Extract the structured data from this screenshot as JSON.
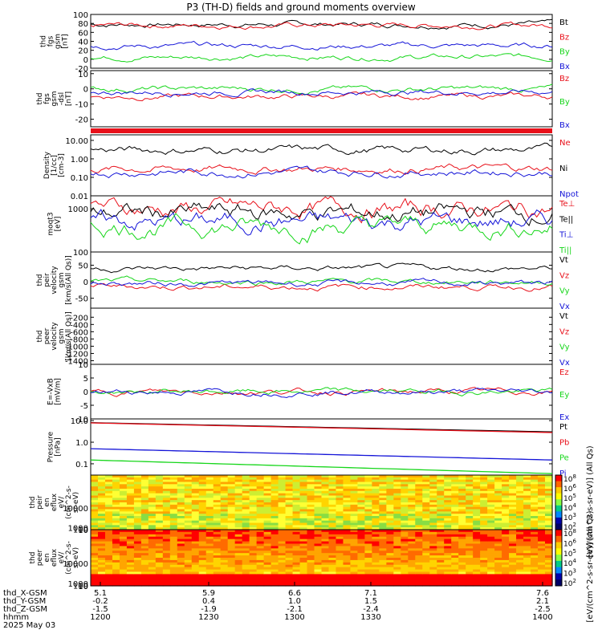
{
  "title": "P3 (TH-D) fields and ground moments overview",
  "colors": {
    "black": "#000000",
    "red": "#e8101a",
    "green": "#16d61a",
    "blue": "#1414d8"
  },
  "chart_data": [
    {
      "type": "line",
      "panel": "fgs-gsm",
      "ylabel": [
        "thd",
        "fgs",
        "gsm",
        "[nT]"
      ],
      "ylim": [
        -20,
        100
      ],
      "yticks": [
        100,
        80,
        60,
        40,
        20,
        0,
        -20
      ],
      "series": [
        {
          "name": "Bt",
          "color": "black",
          "level": 78
        },
        {
          "name": "Bz",
          "color": "red",
          "level": 76
        },
        {
          "name": "By",
          "color": "green",
          "level": 5
        },
        {
          "name": "Bx",
          "color": "blue",
          "level": 30
        }
      ]
    },
    {
      "type": "line",
      "panel": "fgs-dsl",
      "ylabel": [
        "thd",
        "fgs",
        "gsm",
        "-dsl",
        "[nT]"
      ],
      "ylim": [
        -25,
        12
      ],
      "yticks": [
        10,
        0,
        -10,
        -20
      ],
      "series": [
        {
          "name": "Bz",
          "color": "red",
          "level": -5
        },
        {
          "name": "By",
          "color": "green",
          "level": 0
        },
        {
          "name": "Bx",
          "color": "blue",
          "level": -2
        }
      ]
    },
    {
      "type": "line",
      "panel": "density",
      "log": true,
      "ylabel": [
        "Density",
        "[1/cc]",
        "[cm-3]"
      ],
      "ylim": [
        0.01,
        20
      ],
      "yticks": [
        "10.00",
        "1.00",
        "0.10",
        "0.01"
      ],
      "series": [
        {
          "name": "Ne",
          "color": "red",
          "level": 0.3
        },
        {
          "name": "Ni",
          "color": "black",
          "level": 3
        },
        {
          "name": "Npot",
          "color": "blue",
          "level": 0.2
        }
      ]
    },
    {
      "type": "line",
      "panel": "temperature",
      "log": true,
      "ylabel": [
        "moqt3",
        "[eV]"
      ],
      "ylim": [
        100,
        2000
      ],
      "yticks": [
        "1000",
        "100"
      ],
      "series": [
        {
          "name": "Te⊥",
          "color": "red",
          "level": 1000
        },
        {
          "name": "Te||",
          "color": "black",
          "level": 800
        },
        {
          "name": "Ti⊥",
          "color": "blue",
          "level": 500
        },
        {
          "name": "Ti||",
          "color": "green",
          "level": 400
        }
      ]
    },
    {
      "type": "line",
      "panel": "peir-velocity",
      "ylabel": [
        "thd",
        "peir",
        "velocity",
        "gsm",
        "[km/s(All Qs)]"
      ],
      "ylim": [
        -80,
        90
      ],
      "yticks": [
        "50",
        "0",
        "-50"
      ],
      "series": [
        {
          "name": "Vt",
          "color": "black",
          "level": 40
        },
        {
          "name": "Vz",
          "color": "red",
          "level": -15
        },
        {
          "name": "Vy",
          "color": "green",
          "level": 0
        },
        {
          "name": "Vx",
          "color": "blue",
          "level": -5
        }
      ]
    },
    {
      "type": "line",
      "panel": "peer-velocity",
      "ylabel": [
        "thd",
        "peer",
        "velocity",
        "gsm",
        "[km/s(All Qs)]"
      ],
      "ylim": [
        -1500,
        50
      ],
      "yticks": [
        "-200",
        "-400",
        "-600",
        "-800",
        "-1000",
        "-1200",
        "-1400"
      ],
      "series": [
        {
          "name": "Vt",
          "color": "black"
        },
        {
          "name": "Vz",
          "color": "red"
        },
        {
          "name": "Vy",
          "color": "green"
        },
        {
          "name": "Vx",
          "color": "blue"
        }
      ]
    },
    {
      "type": "line",
      "panel": "efield",
      "ylabel": [
        "E=-VxB",
        "[mV/m]"
      ],
      "ylim": [
        -10,
        10
      ],
      "yticks": [
        "10",
        "5",
        "0",
        "-5",
        "-10"
      ],
      "series": [
        {
          "name": "Ez",
          "color": "red",
          "level": 0
        },
        {
          "name": "Ey",
          "color": "green",
          "level": 0
        },
        {
          "name": "Ex",
          "color": "blue",
          "level": 0
        }
      ]
    },
    {
      "type": "line",
      "panel": "pressure",
      "log": true,
      "ylabel": [
        "Pressure",
        "[nPa]"
      ],
      "ylim": [
        0.03,
        12
      ],
      "yticks": [
        "10.0",
        "1.0",
        "0.1"
      ],
      "series": [
        {
          "name": "Pt",
          "color": "black"
        },
        {
          "name": "Pb",
          "color": "red"
        },
        {
          "name": "Pe",
          "color": "green"
        },
        {
          "name": "Pi",
          "color": "blue"
        }
      ]
    },
    {
      "type": "heatmap",
      "panel": "peir-eflux",
      "ylabel": [
        "thd",
        "peir",
        "en",
        "eflux",
        "eV/",
        "(cm^2-s-",
        "sr-eV)"
      ],
      "ylim": [
        7,
        25000
      ],
      "yticks": [
        "10000",
        "1000",
        "100",
        "10"
      ]
    },
    {
      "type": "heatmap",
      "panel": "peer-eflux",
      "ylabel": [
        "thd",
        "peer",
        "en",
        "eflux",
        "eV/",
        "(cm^2-s-",
        "sr-eV)"
      ],
      "ylim": [
        7,
        25000
      ],
      "yticks": [
        "10000",
        "1000",
        "100",
        "10"
      ]
    }
  ],
  "colorbar": {
    "ticks": [
      "10^8",
      "10^6",
      "10^5",
      "10^4",
      "10^3",
      "10^2"
    ],
    "label": "[eV/(cm^2-s-sr-eV)] (All Qs)",
    "label2": "[eV/(cm^2-s-sr-eV)] (All Qs)"
  },
  "xaxis": {
    "rows": [
      {
        "label": "thd_X-GSM",
        "values": [
          "5.1",
          "5.9",
          "6.6",
          "7.1",
          "7.6"
        ]
      },
      {
        "label": "thd_Y-GSM",
        "values": [
          "-0.2",
          "0.4",
          "1.0",
          "1.5",
          "2.1"
        ]
      },
      {
        "label": "thd_Z-GSM",
        "values": [
          "-1.5",
          "-1.9",
          "-2.1",
          "-2.4",
          "-2.5"
        ]
      },
      {
        "label": "hhmm",
        "values": [
          "1200",
          "1230",
          "1300",
          "1330",
          "1400"
        ]
      }
    ],
    "date": "2025 May 03"
  }
}
